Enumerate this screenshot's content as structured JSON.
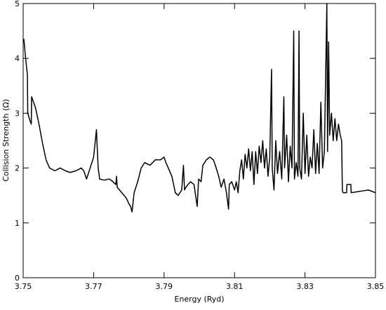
{
  "chart_data": {
    "type": "line",
    "xlabel": "Energy (Ryd)",
    "ylabel": "Collision Strength (Ω)",
    "color": "#000000",
    "xlim": [
      3.75,
      3.85
    ],
    "xticks": [
      3.75,
      3.77,
      3.79,
      3.81,
      3.83,
      3.85
    ],
    "ylim": [
      0,
      5
    ],
    "yticks": [
      0,
      1,
      2,
      3,
      4,
      5
    ],
    "grid": false,
    "x": [
      3.75,
      3.7502,
      3.7507,
      3.7512,
      3.7513,
      3.752,
      3.7523,
      3.7524,
      3.7535,
      3.7545,
      3.7555,
      3.7565,
      3.7575,
      3.759,
      3.7605,
      3.762,
      3.7633,
      3.765,
      3.7665,
      3.7672,
      3.768,
      3.769,
      3.77,
      3.7708,
      3.771,
      3.7713,
      3.7717,
      3.773,
      3.7745,
      3.7755,
      3.7763,
      3.7765,
      3.7767,
      3.778,
      3.7793,
      3.78,
      3.7805,
      3.7809,
      3.7815,
      3.7825,
      3.7835,
      3.7845,
      3.786,
      3.7875,
      3.789,
      3.79,
      3.7905,
      3.7912,
      3.7922,
      3.7932,
      3.794,
      3.795,
      3.7955,
      3.7958,
      3.7962,
      3.7968,
      3.7975,
      3.7985,
      3.7994,
      3.7998,
      3.8005,
      3.801,
      3.802,
      3.803,
      3.804,
      3.8048,
      3.8055,
      3.8062,
      3.807,
      3.8077,
      3.8083,
      3.8085,
      3.8092,
      3.81,
      3.8105,
      3.811,
      3.8115,
      3.812,
      3.8125,
      3.813,
      3.8135,
      3.814,
      3.8145,
      3.815,
      3.8155,
      3.816,
      3.8165,
      3.817,
      3.8175,
      3.818,
      3.8185,
      3.819,
      3.8195,
      3.82,
      3.8205,
      3.8207,
      3.8212,
      3.8217,
      3.8222,
      3.8228,
      3.8234,
      3.824,
      3.8242,
      3.8248,
      3.8253,
      3.8258,
      3.8263,
      3.8268,
      3.827,
      3.8275,
      3.828,
      3.8283,
      3.8285,
      3.829,
      3.8295,
      3.83,
      3.8305,
      3.831,
      3.8315,
      3.832,
      3.8325,
      3.833,
      3.8335,
      3.834,
      3.8345,
      3.835,
      3.8355,
      3.8362,
      3.8364,
      3.8367,
      3.837,
      3.8375,
      3.838,
      3.8385,
      3.839,
      3.8395,
      3.84,
      3.8404,
      3.8406,
      3.8408,
      3.8418,
      3.8419,
      3.843,
      3.8431,
      3.846,
      3.848,
      3.85
    ],
    "values": [
      4.3,
      4.35,
      4.0,
      3.7,
      3.0,
      2.85,
      2.8,
      3.3,
      3.1,
      2.8,
      2.45,
      2.15,
      2.0,
      1.95,
      2.0,
      1.95,
      1.92,
      1.95,
      2.0,
      1.95,
      1.8,
      2.0,
      2.2,
      2.7,
      2.4,
      2.0,
      1.8,
      1.78,
      1.8,
      1.75,
      1.7,
      1.85,
      1.65,
      1.55,
      1.45,
      1.35,
      1.3,
      1.2,
      1.55,
      1.75,
      2.0,
      2.1,
      2.05,
      2.15,
      2.15,
      2.2,
      2.1,
      2.0,
      1.85,
      1.55,
      1.5,
      1.6,
      2.05,
      1.6,
      1.65,
      1.7,
      1.75,
      1.7,
      1.3,
      1.8,
      1.75,
      2.05,
      2.15,
      2.2,
      2.15,
      2.0,
      1.85,
      1.65,
      1.8,
      1.55,
      1.25,
      1.7,
      1.75,
      1.6,
      1.75,
      1.55,
      1.95,
      2.15,
      1.8,
      2.25,
      2.0,
      2.35,
      1.95,
      2.3,
      1.7,
      2.3,
      1.9,
      2.4,
      2.1,
      2.5,
      2.0,
      2.35,
      1.85,
      2.2,
      3.8,
      2.0,
      1.6,
      2.5,
      1.9,
      2.3,
      1.8,
      3.3,
      2.0,
      2.6,
      1.75,
      2.4,
      2.0,
      4.5,
      1.8,
      2.1,
      1.85,
      4.5,
      2.0,
      1.8,
      3.0,
      1.9,
      2.6,
      1.85,
      2.2,
      2.0,
      2.7,
      1.9,
      2.45,
      1.9,
      3.2,
      2.0,
      2.3,
      5.0,
      2.3,
      4.3,
      2.6,
      3.0,
      2.5,
      2.9,
      2.5,
      2.8,
      2.6,
      2.5,
      1.6,
      1.55,
      1.55,
      1.7,
      1.7,
      1.55,
      1.58,
      1.6,
      1.55
    ]
  }
}
